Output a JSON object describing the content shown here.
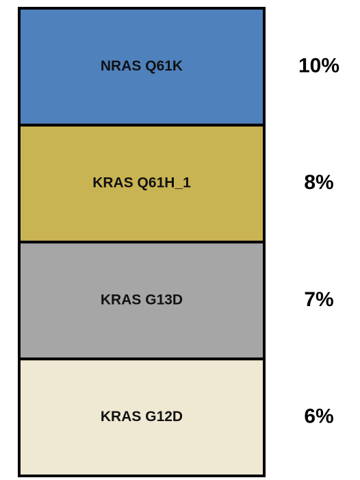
{
  "items": [
    {
      "label": "NRAS Q61K",
      "value": "10%",
      "color": "#4f81bd"
    },
    {
      "label": "KRAS Q61H_1",
      "value": "8%",
      "color": "#c9b453"
    },
    {
      "label": "KRAS G13D",
      "value": "7%",
      "color": "#a6a6a6"
    },
    {
      "label": "KRAS G12D",
      "value": "6%",
      "color": "#efe9d3"
    }
  ]
}
